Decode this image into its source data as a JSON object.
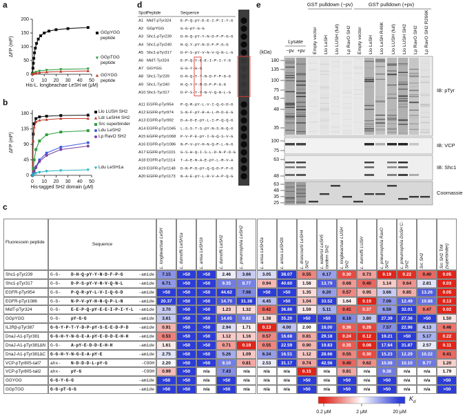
{
  "chart_data": [
    {
      "panel": "a",
      "type": "line",
      "x_label": "His-L. longbeachae LeSH wt (μM)",
      "y_label": "ΔFP (mP)",
      "xlim": [
        0,
        50
      ],
      "xticks": [
        0,
        10,
        20,
        30,
        40,
        50
      ],
      "ylim": [
        0,
        200
      ],
      "yticks": [
        0,
        50,
        100,
        150,
        200
      ],
      "series": [
        {
          "name": "GGpYGG peptide",
          "color": "#111111",
          "marker": "square",
          "x": [
            0.2,
            0.5,
            0.8,
            1.2,
            1.8,
            2.5,
            3.5,
            5,
            7,
            10,
            14,
            20,
            30,
            47
          ],
          "values": [
            4,
            22,
            40,
            58,
            78,
            95,
            112,
            128,
            140,
            150,
            157,
            162,
            166,
            170
          ]
        },
        {
          "name": "GGpTGG peptide",
          "color": "#2e9e3e",
          "marker": "triangle-down",
          "x": [
            0.2,
            1,
            3,
            6,
            12,
            24,
            47
          ],
          "values": [
            0,
            4,
            8,
            12,
            15,
            18,
            20
          ]
        },
        {
          "name": "GGYGG peptide",
          "color": "#c0392b",
          "marker": "triangle",
          "x": [
            0.2,
            1,
            3,
            6,
            12,
            24,
            47
          ],
          "values": [
            0,
            2,
            4,
            6,
            8,
            10,
            12
          ]
        }
      ]
    },
    {
      "panel": "b",
      "type": "line",
      "x_label": "His-tagged SH2 domain (μM)",
      "y_label": "ΔFP (mP)",
      "xlim": [
        0,
        50
      ],
      "xticks": [
        0,
        10,
        20,
        30,
        40,
        50
      ],
      "ylim": [
        0,
        190
      ],
      "yticks": [
        0,
        45,
        90,
        135,
        180
      ],
      "series": [
        {
          "name": "Llo LUSH SH2",
          "color": "#111111",
          "marker": "square",
          "x": [
            0.2,
            0.75,
            1.5,
            3,
            6,
            12,
            24,
            47
          ],
          "values": [
            0,
            120,
            150,
            165,
            170,
            172,
            174,
            175
          ]
        },
        {
          "name": "Ldr LeSH4 SH2",
          "color": "#c0392b",
          "marker": "triangle",
          "x": [
            0.2,
            0.75,
            1.5,
            3,
            6,
            12,
            24,
            47
          ],
          "values": [
            0,
            100,
            140,
            155,
            160,
            162,
            165,
            165
          ]
        },
        {
          "name": "Src superbinder",
          "color": "#2e9e3e",
          "marker": "square",
          "x": [
            0.2,
            0.75,
            1.5,
            3,
            6,
            12,
            24,
            47
          ],
          "values": [
            0,
            20,
            45,
            75,
            100,
            118,
            126,
            130
          ]
        },
        {
          "name": "Ldu LeSH2",
          "color": "#3b5bdb",
          "marker": "circle",
          "x": [
            0.2,
            0.75,
            1.5,
            3,
            6,
            12,
            24,
            47
          ],
          "values": [
            0,
            5,
            12,
            25,
            45,
            65,
            82,
            95
          ]
        },
        {
          "name": "Lp RavO SH2",
          "color": "#7b3fa0",
          "marker": "circle",
          "x": [
            0.2,
            0.75,
            1.5,
            3,
            6,
            12,
            24,
            47
          ],
          "values": [
            0,
            5,
            10,
            22,
            40,
            58,
            75,
            85
          ]
        },
        {
          "name": "Ldu LeSH1a",
          "color": "#1fb3c8",
          "marker": "triangle-down",
          "x": [
            0.2,
            0.75,
            1.5,
            3,
            6,
            12,
            24,
            47
          ],
          "values": [
            0,
            2,
            4,
            6,
            9,
            12,
            14,
            16
          ]
        }
      ]
    }
  ],
  "panel_c": {
    "panel": "c",
    "headers": {
      "peptide": "Fluorescein peptide",
      "sequence": "Sequence"
    },
    "columns": [
      "L. longbeachae LeSH",
      "L. dumoffii LeSH1a",
      "L. anisa LeSH1b",
      "L. dumoffii LeSH2",
      "L. pneumophila LeSH2",
      "L. anisa LeSH2a",
      "L. anisa LeSH2b",
      "L. drancourtii LeSH4 SH2",
      "L. waltersii LeSH5 tandem SH2",
      "L. longbeachae LUSH SH2",
      "L. dumoffii LUSH",
      "L. pneumophila RavO SH2",
      "L. pneumophila DoSH C-SH2",
      "Src SH2",
      "Src SH2 TrM (superbinder)"
    ],
    "rows": [
      {
        "peptide": "Shc1-pTyr239",
        "sequence": [
          "G-G-",
          "D-H-Q-pY-Y-N-D-F-P-G",
          "-amide"
        ],
        "kd": [
          "7.15",
          ">50",
          ">50",
          "2.46",
          "3.66",
          "3.05",
          "38.07",
          "0.55",
          "6.17",
          "0.30",
          "0.73",
          "0.19",
          "0.22",
          "0.40",
          "0.05"
        ]
      },
      {
        "peptide": "Shc1-pTyr317",
        "sequence": [
          "G-G-",
          "D-P-S-pY-V-N-V-Q-N-L",
          "-amide"
        ],
        "kd": [
          "6.71",
          ">50",
          ">50",
          "9.35",
          "8.77",
          "0.94",
          "40.60",
          "1.58",
          "13.79",
          "0.68",
          "0.40",
          "1.14",
          "0.64",
          "2.81",
          "0.03"
        ]
      },
      {
        "peptide": "EGFR-pTyr954",
        "sequence": [
          "G-G-",
          "P-Q-R-pY-L-V-I-Q-G-D",
          "-amide"
        ],
        "kd": [
          ">50",
          ">50",
          ">50",
          "44.62",
          "7.98",
          ">50",
          ">50",
          "1.35",
          "6.20",
          "0.57",
          "0.95",
          "3.66",
          "0.85",
          "13.26",
          "0.05"
        ]
      },
      {
        "peptide": "EGFR-pTyr1086",
        "sequence": [
          "G-G-",
          "N-P-V-pY-H-N-Q-P-L-N",
          "-amide"
        ],
        "kd": [
          "20.37",
          ">50",
          ">50",
          "14.70",
          "31.38",
          "4.45",
          ">50",
          "1.04",
          "33.52",
          "1.64",
          "0.19",
          "7.06",
          "12.49",
          "10.88",
          "0.13"
        ]
      },
      {
        "peptide": "MidT-pTyr324",
        "sequence": [
          "G-G-",
          "E-E-P-Q-pY-E-E-I-P-I-Y-L",
          "-amide"
        ],
        "kd": [
          "3.70",
          ">50",
          ">50",
          "1.23",
          "1.32",
          "0.42",
          "36.86",
          "1.59",
          "5.11",
          "0.41",
          "0.37",
          "6.59",
          "32.01",
          "0.47",
          "0.02"
        ]
      },
      {
        "peptide": "GGpYGG",
        "sequence": [
          "G-G-",
          "pY-G-G",
          "-amide"
        ],
        "kd": [
          "3.61",
          ">50",
          ">50",
          "14.65",
          "9.82",
          "1.38",
          "35.20",
          ">50",
          ">50",
          "8.18",
          "3.80",
          "27.39",
          "27.36",
          ">50",
          "1.50"
        ]
      },
      {
        "peptide": "IL2Rβ-pTyr387",
        "sequence": [
          "G-G-Y-P-T-Y-D-P-pY-S-E-E-D-P-D",
          "-amide"
        ],
        "kd": [
          "0.91",
          ">50",
          ">50",
          "2.94",
          "1.71",
          "0.13",
          "4.00",
          "2.00",
          "18.00",
          "0.36",
          "0.28",
          "7.57",
          "22.96",
          "4.13",
          "0.46"
        ]
      },
      {
        "peptide": "DnaJ-A1-pTyr381",
        "sequence": [
          "G-G-H-Y-N-G-E-A-pY-E-D-D-E-H-H",
          "-amide"
        ],
        "kd": [
          "0.53",
          ">50",
          ">50",
          "1.12",
          "1.16",
          "0.57",
          "16.68",
          "0.81",
          "29.18",
          "0.24",
          "0.12",
          "19.21",
          ">50",
          "5.17",
          "0.22"
        ]
      },
      {
        "peptide": "DnaJ-A1-pTyr381ΔN",
        "sequence": [
          "G-G-",
          "A-pY-E-D-D-E-H-H",
          "-amide"
        ],
        "kd": [
          "1.61",
          ">50",
          ">50",
          "0.71",
          "0.19",
          "0.55",
          "22.59",
          "0.90",
          "19.83",
          "0.35",
          "0.08",
          "17.64",
          "31.87",
          "2.57",
          "0.11"
        ]
      },
      {
        "peptide": "DnaJ-A1-pTyr381ΔC",
        "sequence": [
          "G-G-H-Y-N-G-E-A-pY-E",
          "-amide"
        ],
        "kd": [
          "2.75",
          ">50",
          ">50",
          "5.26",
          "1.09",
          "6.34",
          "16.51",
          "1.12",
          "28.66",
          "0.55",
          "0.30",
          "15.23",
          "12.29",
          "10.22",
          "0.41"
        ]
      },
      {
        "peptide": "VCP-pTyr805-tail7",
        "sequence": [
          "ahx-",
          "N-D-D-D-L-pY-G",
          "-COOH"
        ],
        "kd": [
          "2.20",
          ">50",
          ">50",
          "9.10",
          "0.81",
          "2.53",
          "31.17",
          "0.74",
          "42.56",
          "0.40",
          "0.62",
          "10.08",
          "10.10",
          "9.77",
          "1.20"
        ]
      },
      {
        "peptide": "VCP-pTyr805-tail2",
        "sequence": [
          "ahx-",
          "pY-G",
          "-COOH"
        ],
        "kd": [
          "0.99",
          ">50",
          "n/a",
          "7.43",
          "n/a",
          "n/a",
          "n/a",
          "0.15",
          "n/a",
          "0.81",
          "n/a",
          "9.38",
          "n/a",
          "n/a",
          "1.79"
        ]
      },
      {
        "peptide": "GGYGG",
        "sequence": [
          "G-G-Y-G-G",
          "-amide"
        ],
        "kd": [
          ">50",
          ">50",
          "n/a",
          ">50",
          "n/a",
          "n/a",
          "n/a",
          ">50",
          "n/a",
          ">50",
          "n/a",
          ">50",
          "n/a",
          "n/a",
          ">50"
        ]
      },
      {
        "peptide": "GGpTGG",
        "sequence": [
          "G-G-pT-G-G",
          "-amide"
        ],
        "kd": [
          ">50",
          ">50",
          "n/a",
          ">50",
          "n/a",
          "n/a",
          "n/a",
          ">50",
          "n/a",
          ">50",
          "n/a",
          ">50",
          "n/a",
          "n/a",
          ">50"
        ]
      }
    ],
    "colorbar": {
      "symbol": "K",
      "subscript": "d",
      "log": true,
      "colors": [
        "#e0251b",
        "#ffffff",
        "#2c3cd6"
      ],
      "ticks": [
        {
          "value": 0.2,
          "label": "0.2 μM"
        },
        {
          "value": 2,
          "label": "2 μM"
        },
        {
          "value": 20,
          "label": "20 μM"
        }
      ]
    }
  },
  "panel_d": {
    "panel": "d",
    "headers": [
      "Spot",
      "Peptide",
      "Sequence"
    ],
    "rows": [
      {
        "spot": "A1",
        "peptide": "MidT-pTyr324",
        "sequence": "E-P-Q-pY-E-E-I-P-I-Y-G"
      },
      {
        "spot": "A2",
        "peptide": "GGpYGG",
        "sequence": "G-G-pY-G-G"
      },
      {
        "spot": "A3",
        "peptide": "Shc1-pTyr239",
        "sequence": "D-H-Q-pY-Y-N-D-F-P-G-G"
      },
      {
        "spot": "A4",
        "peptide": "Shc1-pTyr240",
        "sequence": "H-Q-Y-pY-N-D-F-P-G-G"
      },
      {
        "spot": "A5",
        "peptide": "Shc1-pTyr317",
        "sequence": "D-P-S-pY-V-N-V-Q-N-L-G"
      },
      {
        "spot": "A6",
        "peptide": "MidT-Tyr324",
        "sequence": "E-P-Q-Y-E-E-I-P-I-Y-G"
      },
      {
        "spot": "A7",
        "peptide": "GGYGG",
        "sequence": "G-G-Y-G-G"
      },
      {
        "spot": "A8",
        "peptide": "Shc1-Tyr239",
        "sequence": "D-H-Q-Y-Y-N-D-F-P-G-G"
      },
      {
        "spot": "A9",
        "peptide": "Shc1-Tyr240",
        "sequence": "H-Q-Y-Y-N-D-F-P-G-G"
      },
      {
        "spot": "A10",
        "peptide": "Shc1-Tyr317",
        "sequence": "D-P-S-Y-V-N-V-Q-N-L-G"
      },
      {
        "spot": "A11",
        "peptide": "EGFR-pTyr954",
        "sequence": "P-Q-R-pY-L-V-I-Q-G-D-G"
      },
      {
        "spot": "A12",
        "peptide": "EGFR-pTyr974",
        "sequence": "S-N-F-pY-R-A-L-M-D-E-G"
      },
      {
        "spot": "A13",
        "peptide": "EGFR-pTyr992",
        "sequence": "D-A-D-E-pY-L-I-P-Q-Q-G"
      },
      {
        "spot": "A14",
        "peptide": "EGFR-pTyr1045",
        "sequence": "L-S-S-T-S-pY-N-S-N-Q-G"
      },
      {
        "spot": "A15",
        "peptide": "EGFR-pTyr1068",
        "sequence": "P-V-P-E-pY-I-N-Q-S-V-G"
      },
      {
        "spot": "A16",
        "peptide": "EGFR-pTyr1086",
        "sequence": "N-P-V-pY-H-N-Q-P-L-N-G"
      },
      {
        "spot": "A17",
        "peptide": "EGFR-pTyr1101",
        "sequence": "G-S-H-Q-I-S-L-D-N-P-D-G"
      },
      {
        "spot": "A18",
        "peptide": "EGFR-pTyr1114",
        "sequence": "T-A-E-N-A-E-pY-L-R-V-A"
      },
      {
        "spot": "A19",
        "peptide": "EGFR-pTyr1148",
        "sequence": "D-N-P-D-pY-Q-Q-D-F-F-G"
      },
      {
        "spot": "A20",
        "peptide": "EGFR-pTyr1173",
        "sequence": "N-A-E-pY-L-R-V-A-P-Q-G"
      }
    ]
  },
  "panel_e": {
    "panel": "e",
    "lysate": "Lysate",
    "lysate_lanes": [
      "−pv",
      "+pv"
    ],
    "group_minus": "GST pulldown (−pv)",
    "group_plus": "GST pulldown (+pv)",
    "lanes_minus": [
      "Empty vector",
      "Llo LeSH",
      "Llo LUSH (full)",
      "Lp RavO SH2"
    ],
    "lanes_plus": [
      "Empty vector",
      "Llo LeSH",
      "Llo LeSH R46K",
      "Llo LUSH (full)",
      "Llo LUSH SH2",
      "Lp RavO SH2",
      "Lp RavO SH2 R266K"
    ],
    "kda": "(kDa)",
    "blots": [
      {
        "label": "IB: pTyr",
        "markers": [
          180,
          135,
          100,
          75,
          63,
          48,
          35
        ]
      },
      {
        "label": "IB: VCP",
        "markers": [
          100,
          75
        ]
      },
      {
        "label": "IB: Shc1",
        "markers": [
          63,
          48
        ]
      },
      {
        "label": "Coomassie",
        "markers": [
          63,
          48,
          35,
          25
        ]
      }
    ]
  }
}
